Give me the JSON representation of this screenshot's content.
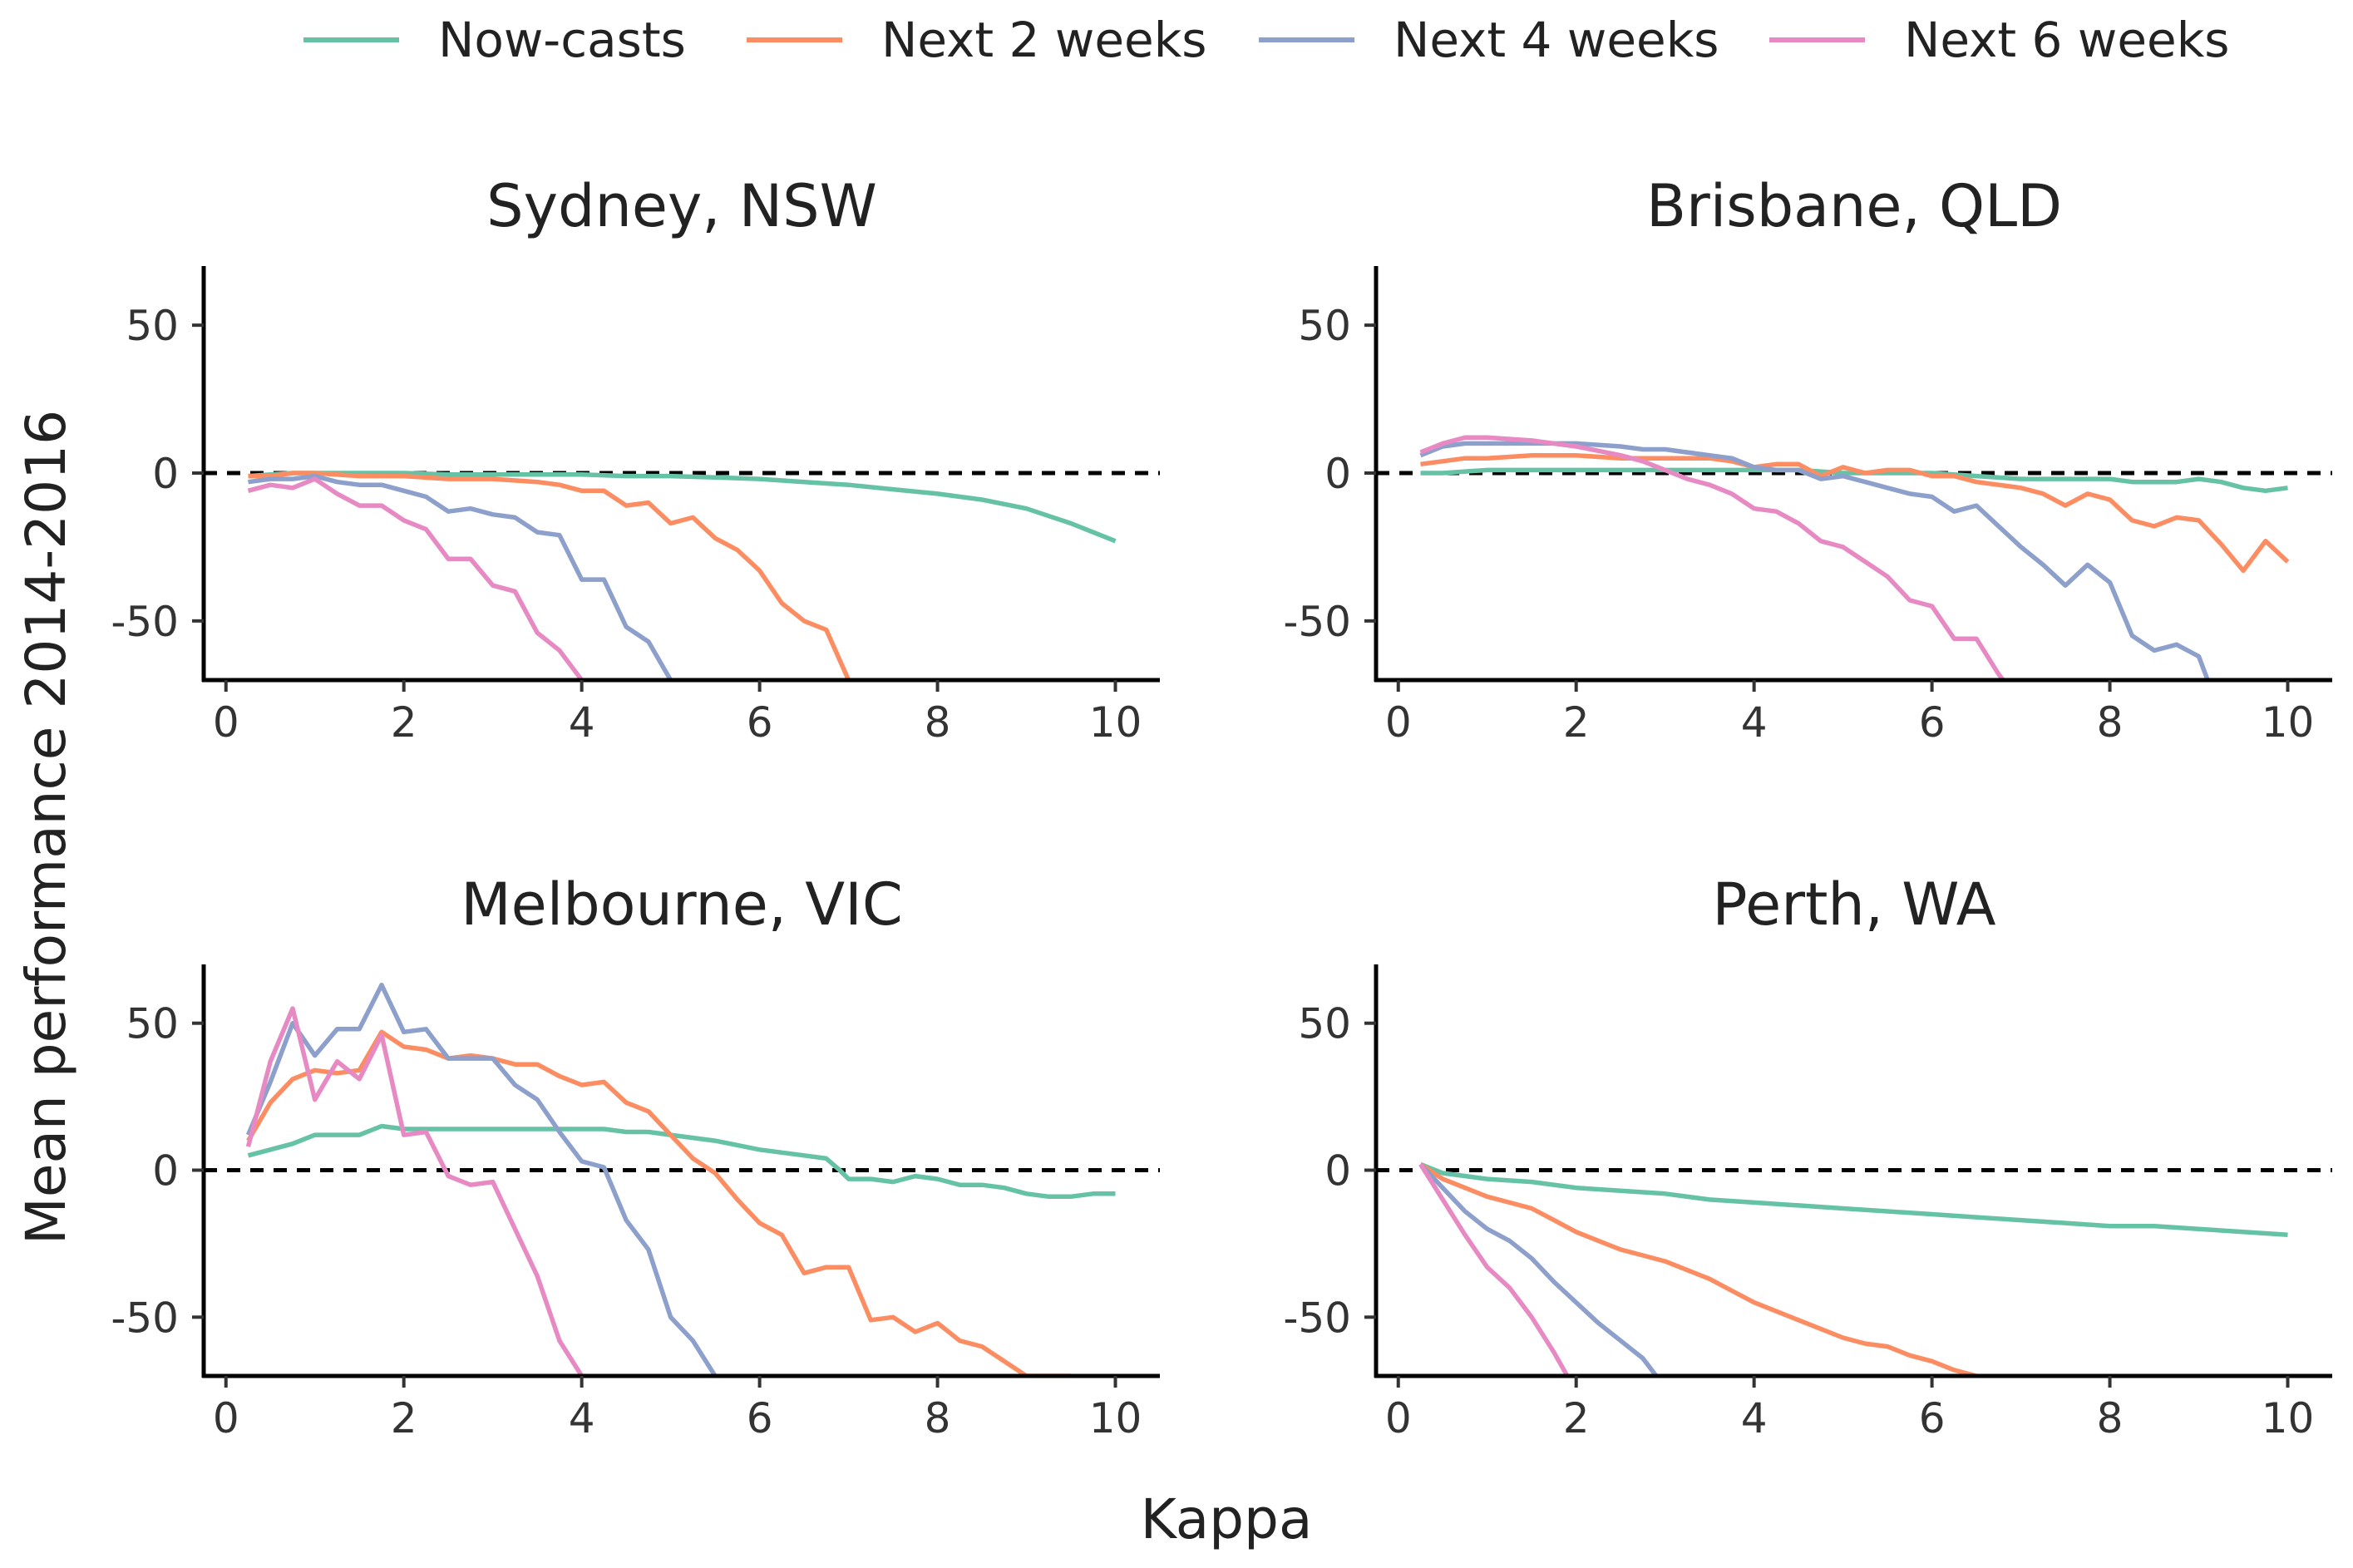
{
  "x_axis_label": "Kappa",
  "y_axis_label": "Mean performance 2014-2016",
  "legend": [
    {
      "key": "nowcast",
      "label": "Now-casts",
      "color": "#66c2a5"
    },
    {
      "key": "next2",
      "label": "Next 2 weeks",
      "color": "#fc8d62"
    },
    {
      "key": "next4",
      "label": "Next 4 weeks",
      "color": "#8da0cb"
    },
    {
      "key": "next6",
      "label": "Next 6 weeks",
      "color": "#e78ac3"
    }
  ],
  "chart_data": [
    {
      "type": "line",
      "title": "Sydney, NSW",
      "xlim": [
        -0.25,
        10.5
      ],
      "ylim": [
        -70,
        70
      ],
      "xticks": [
        0,
        2,
        4,
        6,
        8,
        10
      ],
      "yticks": [
        -50,
        0,
        50
      ],
      "reference_line": 0,
      "series": [
        {
          "name": "Now-casts",
          "x": [
            0.25,
            0.5,
            0.75,
            1,
            1.5,
            2,
            2.5,
            3,
            3.5,
            4,
            4.5,
            5,
            5.5,
            6,
            6.5,
            7,
            7.5,
            8,
            8.5,
            9,
            9.5,
            10
          ],
          "y": [
            -1,
            -0.5,
            0,
            0,
            0,
            0,
            -0.5,
            -0.5,
            -0.5,
            -0.5,
            -1,
            -1,
            -1.5,
            -2,
            -3,
            -4,
            -5.5,
            -7,
            -9,
            -12,
            -17,
            -23
          ]
        },
        {
          "name": "Next 2 weeks",
          "x": [
            0.25,
            0.5,
            0.75,
            1,
            1.5,
            2,
            2.5,
            3,
            3.5,
            3.75,
            4,
            4.25,
            4.5,
            4.75,
            5,
            5.25,
            5.5,
            5.75,
            6,
            6.25,
            6.5,
            6.75,
            7
          ],
          "y": [
            -1,
            -1,
            0,
            0,
            -1,
            -1,
            -2,
            -2,
            -3,
            -4,
            -6,
            -6,
            -11,
            -10,
            -17,
            -15,
            -22,
            -26,
            -33,
            -44,
            -50,
            -53,
            -70
          ]
        },
        {
          "name": "Next 4 weeks",
          "x": [
            0.25,
            0.5,
            0.75,
            1,
            1.25,
            1.5,
            1.75,
            2,
            2.25,
            2.5,
            2.75,
            3,
            3.25,
            3.5,
            3.75,
            4,
            4.25,
            4.5,
            4.75,
            5
          ],
          "y": [
            -3,
            -2,
            -2,
            -1,
            -3,
            -4,
            -4,
            -6,
            -8,
            -13,
            -12,
            -14,
            -15,
            -20,
            -21,
            -36,
            -36,
            -52,
            -57,
            -70
          ]
        },
        {
          "name": "Next 6 weeks",
          "x": [
            0.25,
            0.5,
            0.75,
            1,
            1.25,
            1.5,
            1.75,
            2,
            2.25,
            2.5,
            2.75,
            3,
            3.25,
            3.5,
            3.75,
            4
          ],
          "y": [
            -6,
            -4,
            -5,
            -2,
            -7,
            -11,
            -11,
            -16,
            -19,
            -29,
            -29,
            -38,
            -40,
            -54,
            -60,
            -70
          ]
        }
      ]
    },
    {
      "type": "line",
      "title": "Brisbane, QLD",
      "xlim": [
        -0.25,
        10.5
      ],
      "ylim": [
        -70,
        70
      ],
      "xticks": [
        0,
        2,
        4,
        6,
        8,
        10
      ],
      "yticks": [
        -50,
        0,
        50
      ],
      "reference_line": 0,
      "series": [
        {
          "name": "Now-casts",
          "x": [
            0.25,
            0.5,
            1,
            1.5,
            2,
            2.5,
            3,
            3.5,
            4,
            4.5,
            5,
            5.5,
            6,
            6.5,
            7,
            7.5,
            8,
            8.25,
            8.5,
            8.75,
            9,
            9.25,
            9.5,
            9.75,
            10
          ],
          "y": [
            0,
            0,
            1,
            1,
            1,
            1,
            1,
            1,
            1,
            1,
            0,
            0,
            0,
            -1,
            -2,
            -2,
            -2,
            -3,
            -3,
            -3,
            -2,
            -3,
            -5,
            -6,
            -5
          ]
        },
        {
          "name": "Next 2 weeks",
          "x": [
            0.25,
            0.5,
            0.75,
            1,
            1.5,
            2,
            2.5,
            3,
            3.5,
            3.75,
            4,
            4.25,
            4.5,
            4.75,
            5,
            5.25,
            5.5,
            5.75,
            6,
            6.25,
            6.5,
            6.75,
            7,
            7.25,
            7.5,
            7.75,
            8,
            8.25,
            8.5,
            8.75,
            9,
            9.25,
            9.5,
            9.75,
            10
          ],
          "y": [
            3,
            4,
            5,
            5,
            6,
            6,
            5,
            5,
            5,
            4,
            2,
            3,
            3,
            -1,
            2,
            0,
            1,
            1,
            -1,
            -1,
            -3,
            -4,
            -5,
            -7,
            -11,
            -7,
            -9,
            -16,
            -18,
            -15,
            -16,
            -24,
            -33,
            -23,
            -30
          ]
        },
        {
          "name": "Next 4 weeks",
          "x": [
            0.25,
            0.5,
            0.75,
            1,
            1.5,
            2,
            2.5,
            2.75,
            3,
            3.25,
            3.5,
            3.75,
            4,
            4.25,
            4.5,
            4.75,
            5,
            5.25,
            5.5,
            5.75,
            6,
            6.25,
            6.5,
            6.75,
            7,
            7.25,
            7.5,
            7.75,
            8,
            8.25,
            8.5,
            8.75,
            9,
            9.1
          ],
          "y": [
            6,
            9,
            10,
            10,
            10,
            10,
            9,
            8,
            8,
            7,
            6,
            5,
            2,
            1,
            1,
            -2,
            -1,
            -3,
            -5,
            -7,
            -8,
            -13,
            -11,
            -18,
            -25,
            -31,
            -38,
            -31,
            -37,
            -55,
            -60,
            -58,
            -62,
            -70
          ]
        },
        {
          "name": "Next 6 weeks",
          "x": [
            0.25,
            0.5,
            0.75,
            1,
            1.5,
            2,
            2.5,
            2.75,
            3,
            3.25,
            3.5,
            3.75,
            4,
            4.25,
            4.5,
            4.75,
            5,
            5.25,
            5.5,
            5.75,
            6,
            6.25,
            6.5,
            6.75,
            6.8
          ],
          "y": [
            7,
            10,
            12,
            12,
            11,
            9,
            6,
            4,
            1,
            -2,
            -4,
            -7,
            -12,
            -13,
            -17,
            -23,
            -25,
            -30,
            -35,
            -43,
            -45,
            -56,
            -56,
            -68,
            -70
          ]
        }
      ]
    },
    {
      "type": "line",
      "title": "Melbourne, VIC",
      "xlim": [
        -0.25,
        10.5
      ],
      "ylim": [
        -70,
        70
      ],
      "xticks": [
        0,
        2,
        4,
        6,
        8,
        10
      ],
      "yticks": [
        -50,
        0,
        50
      ],
      "reference_line": 0,
      "series": [
        {
          "name": "Now-casts",
          "x": [
            0.25,
            0.5,
            0.75,
            1,
            1.25,
            1.5,
            1.75,
            2,
            2.5,
            3,
            3.5,
            4,
            4.25,
            4.5,
            4.75,
            5,
            5.25,
            5.5,
            6,
            6.5,
            6.75,
            6.9,
            7,
            7.25,
            7.5,
            7.75,
            8,
            8.25,
            8.5,
            8.75,
            9,
            9.25,
            9.5,
            9.75,
            10
          ],
          "y": [
            5,
            7,
            9,
            12,
            12,
            12,
            15,
            14,
            14,
            14,
            14,
            14,
            14,
            13,
            13,
            12,
            11,
            10,
            7,
            5,
            4,
            0,
            -3,
            -3,
            -4,
            -2,
            -3,
            -5,
            -5,
            -6,
            -8,
            -9,
            -9,
            -8,
            -8
          ]
        },
        {
          "name": "Next 2 weeks",
          "x": [
            0.25,
            0.5,
            0.75,
            1,
            1.25,
            1.5,
            1.75,
            2,
            2.25,
            2.5,
            2.75,
            3,
            3.25,
            3.5,
            3.75,
            4,
            4.25,
            4.5,
            4.75,
            5,
            5.25,
            5.5,
            5.75,
            6,
            6.25,
            6.5,
            6.75,
            7,
            7.25,
            7.5,
            7.75,
            8,
            8.25,
            8.5,
            8.75,
            9,
            9.25,
            9.5
          ],
          "y": [
            10,
            23,
            31,
            34,
            33,
            34,
            47,
            42,
            41,
            38,
            39,
            38,
            36,
            36,
            32,
            29,
            30,
            23,
            20,
            12,
            4,
            -1,
            -10,
            -18,
            -22,
            -35,
            -33,
            -33,
            -51,
            -50,
            -55,
            -52,
            -58,
            -60,
            -65,
            -70,
            -70,
            -70
          ]
        },
        {
          "name": "Next 4 weeks",
          "x": [
            0.25,
            0.5,
            0.75,
            1,
            1.25,
            1.5,
            1.75,
            2,
            2.25,
            2.5,
            2.75,
            3,
            3.25,
            3.5,
            3.75,
            4,
            4.25,
            4.5,
            4.75,
            5,
            5.25,
            5.5
          ],
          "y": [
            12,
            30,
            50,
            39,
            48,
            48,
            63,
            47,
            48,
            38,
            38,
            38,
            29,
            24,
            13,
            3,
            1,
            -17,
            -27,
            -50,
            -58,
            -70
          ]
        },
        {
          "name": "Next 6 weeks",
          "x": [
            0.25,
            0.5,
            0.75,
            1,
            1.25,
            1.5,
            1.75,
            2,
            2.25,
            2.5,
            2.75,
            3,
            3.25,
            3.5,
            3.75,
            4
          ],
          "y": [
            8,
            37,
            55,
            24,
            37,
            31,
            46,
            12,
            13,
            -2,
            -5,
            -4,
            -20,
            -36,
            -58,
            -70
          ]
        }
      ]
    },
    {
      "type": "line",
      "title": "Perth, WA",
      "xlim": [
        -0.25,
        10.5
      ],
      "ylim": [
        -70,
        70
      ],
      "xticks": [
        0,
        2,
        4,
        6,
        8,
        10
      ],
      "yticks": [
        -50,
        0,
        50
      ],
      "reference_line": 0,
      "series": [
        {
          "name": "Now-casts",
          "x": [
            0.25,
            0.5,
            1,
            1.5,
            2,
            2.5,
            3,
            3.5,
            4,
            4.5,
            5,
            5.5,
            6,
            6.5,
            7,
            7.5,
            8,
            8.5,
            9,
            9.5,
            10
          ],
          "y": [
            2,
            -1,
            -3,
            -4,
            -6,
            -7,
            -8,
            -10,
            -11,
            -12,
            -13,
            -14,
            -15,
            -16,
            -17,
            -18,
            -19,
            -19,
            -20,
            -21,
            -22
          ]
        },
        {
          "name": "Next 2 weeks",
          "x": [
            0.25,
            0.5,
            0.75,
            1,
            1.25,
            1.5,
            1.75,
            2,
            2.25,
            2.5,
            2.75,
            3,
            3.25,
            3.5,
            3.75,
            4,
            4.25,
            4.5,
            4.75,
            5,
            5.25,
            5.5,
            5.75,
            6,
            6.25,
            6.5
          ],
          "y": [
            2,
            -3,
            -6,
            -9,
            -11,
            -13,
            -17,
            -21,
            -24,
            -27,
            -29,
            -31,
            -34,
            -37,
            -41,
            -45,
            -48,
            -51,
            -54,
            -57,
            -59,
            -60,
            -63,
            -65,
            -68,
            -70
          ]
        },
        {
          "name": "Next 4 weeks",
          "x": [
            0.25,
            0.5,
            0.75,
            1,
            1.25,
            1.5,
            1.75,
            2,
            2.25,
            2.5,
            2.75,
            2.9
          ],
          "y": [
            2,
            -6,
            -14,
            -20,
            -24,
            -30,
            -38,
            -45,
            -52,
            -58,
            -64,
            -70
          ]
        },
        {
          "name": "Next 6 weeks",
          "x": [
            0.25,
            0.5,
            0.75,
            1,
            1.25,
            1.5,
            1.75,
            1.9
          ],
          "y": [
            2,
            -10,
            -22,
            -33,
            -40,
            -50,
            -62,
            -70
          ]
        }
      ]
    }
  ]
}
